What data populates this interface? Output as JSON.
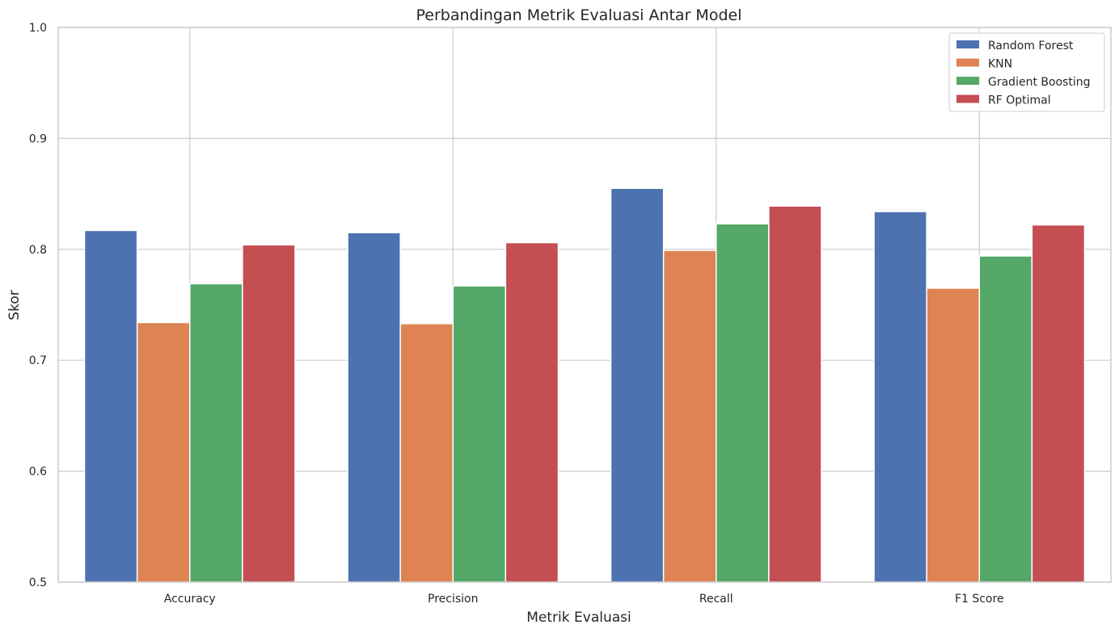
{
  "chart_data": {
    "type": "bar",
    "title": "Perbandingan Metrik Evaluasi Antar Model",
    "xlabel": "Metrik Evaluasi",
    "ylabel": "Skor",
    "categories": [
      "Accuracy",
      "Precision",
      "Recall",
      "F1 Score"
    ],
    "ylim": [
      0.5,
      1.0
    ],
    "yticks": [
      "0.5",
      "0.6",
      "0.7",
      "0.8",
      "0.9",
      "1.0"
    ],
    "grid": true,
    "legend_position": "top-right",
    "series": [
      {
        "name": "Random Forest",
        "color": "#4c72b0",
        "values": [
          0.817,
          0.815,
          0.855,
          0.834
        ]
      },
      {
        "name": "KNN",
        "color": "#dd8452",
        "values": [
          0.734,
          0.733,
          0.799,
          0.765
        ]
      },
      {
        "name": "Gradient Boosting",
        "color": "#55a868",
        "values": [
          0.769,
          0.767,
          0.823,
          0.794
        ]
      },
      {
        "name": "RF Optimal",
        "color": "#c44e52",
        "values": [
          0.804,
          0.806,
          0.839,
          0.822
        ]
      }
    ]
  }
}
